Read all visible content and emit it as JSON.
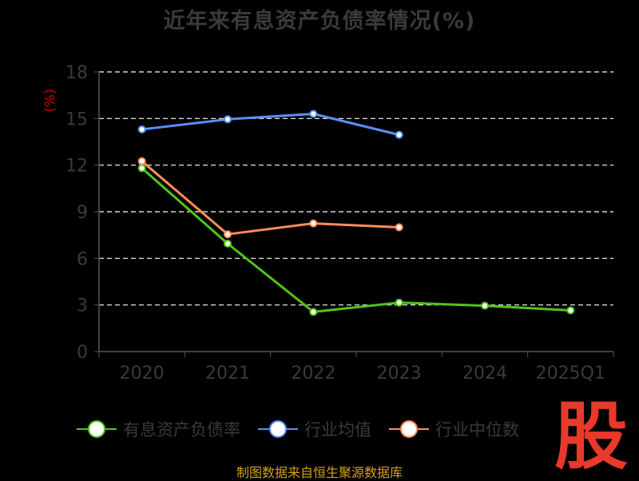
{
  "colors": {
    "background": "#000000",
    "axis": "#555555",
    "tick_text": "#3a3a3a",
    "unit_text": "#cc0000",
    "gridline": "#ffffff",
    "source_text": "#d4a017",
    "logo": "#e8392b"
  },
  "chart_data": {
    "type": "line",
    "title": "近年来有息资产负债率情况(%)",
    "ylabel": "(%)",
    "xlabel": "",
    "categories": [
      "2020",
      "2021",
      "2022",
      "2023",
      "2024",
      "2025Q1"
    ],
    "ylim": [
      0,
      18
    ],
    "yticks": [
      0,
      3,
      6,
      9,
      12,
      15,
      18
    ],
    "grid": "horizontal dashed",
    "legend_position": "bottom",
    "series": [
      {
        "name": "有息资产负债率",
        "color": "#52c41a",
        "values": [
          11.8,
          6.95,
          2.55,
          3.15,
          2.95,
          2.65
        ]
      },
      {
        "name": "行业均值",
        "color": "#5b8ff9",
        "values": [
          14.3,
          14.95,
          15.3,
          13.95,
          null,
          null
        ]
      },
      {
        "name": "行业中位数",
        "color": "#ff8c5a",
        "values": [
          12.25,
          7.55,
          8.25,
          8.0,
          null,
          null
        ]
      }
    ]
  },
  "source": "制图数据来自恒生聚源数据库",
  "logo": {
    "text": "股",
    "icon": "stock-logo"
  }
}
